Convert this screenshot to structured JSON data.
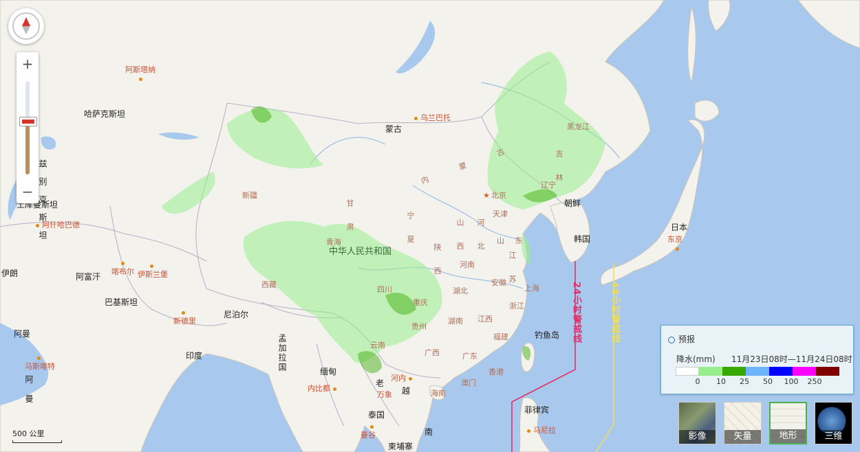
{
  "map": {
    "countries": [
      {
        "id": "mongolia",
        "text": "蒙古"
      },
      {
        "id": "kazakhstan",
        "text": "哈萨克斯坦"
      },
      {
        "id": "china",
        "text": "中华人民共和国"
      },
      {
        "id": "afghanistan",
        "text": "阿富汗"
      },
      {
        "id": "iran",
        "text": "伊朗"
      },
      {
        "id": "pakistan",
        "text": "巴基斯坦"
      },
      {
        "id": "nepal",
        "text": "尼泊尔"
      },
      {
        "id": "india",
        "text": "印度"
      },
      {
        "id": "myanmar",
        "text": "缅甸"
      },
      {
        "id": "laos",
        "text": "老"
      },
      {
        "id": "thailand",
        "text": "泰国"
      },
      {
        "id": "cambodia",
        "text": "柬埔寨"
      },
      {
        "id": "vietnam1",
        "text": "越"
      },
      {
        "id": "vietnam2",
        "text": "南"
      },
      {
        "id": "philippines",
        "text": "菲律宾"
      },
      {
        "id": "japan",
        "text": "日本"
      },
      {
        "id": "nkorea",
        "text": "朝鲜"
      },
      {
        "id": "skorea",
        "text": "韩国"
      },
      {
        "id": "turkmen",
        "text": "土库曼斯坦"
      },
      {
        "id": "oman",
        "text": "阿曼"
      },
      {
        "id": "diaoyu",
        "text": "钓鱼岛"
      }
    ],
    "vertical_labels": [
      {
        "id": "bangla",
        "text": "孟加拉国"
      },
      {
        "id": "uzbek",
        "text": "兹别克斯坦"
      },
      {
        "id": "arabia",
        "text": "阿 曼"
      }
    ],
    "provinces": [
      {
        "id": "xinjiang",
        "text": "新疆"
      },
      {
        "id": "xizang",
        "text": "西藏"
      },
      {
        "id": "qinghai",
        "text": "青海"
      },
      {
        "id": "gansu",
        "text": "甘 肃"
      },
      {
        "id": "neimeng",
        "text": "内 蒙 古"
      },
      {
        "id": "heilongjiang",
        "text": "黑龙江"
      },
      {
        "id": "jilin",
        "text": "吉 林"
      },
      {
        "id": "liaoning",
        "text": "辽宁"
      },
      {
        "id": "hebei",
        "text": "河 北"
      },
      {
        "id": "shanxi",
        "text": "山 西"
      },
      {
        "id": "shaanxi",
        "text": "陕 西"
      },
      {
        "id": "ningxia",
        "text": "宁 夏"
      },
      {
        "id": "shandong",
        "text": "山 东"
      },
      {
        "id": "henan",
        "text": "河南"
      },
      {
        "id": "jiangsu",
        "text": "江 苏"
      },
      {
        "id": "anhui",
        "text": "安徽"
      },
      {
        "id": "hubei",
        "text": "湖北"
      },
      {
        "id": "sichuan",
        "text": "四川"
      },
      {
        "id": "chongqing",
        "text": "重庆"
      },
      {
        "id": "zhejiang",
        "text": "浙江"
      },
      {
        "id": "hunan",
        "text": "湖南"
      },
      {
        "id": "jiangxi",
        "text": "江西"
      },
      {
        "id": "guizhou",
        "text": "贵州"
      },
      {
        "id": "fujian",
        "text": "福建"
      },
      {
        "id": "yunnan",
        "text": "云南"
      },
      {
        "id": "guangxi",
        "text": "广西"
      },
      {
        "id": "guangdong",
        "text": "广东"
      },
      {
        "id": "hainan",
        "text": "海南"
      },
      {
        "id": "beijing",
        "text": "北京"
      },
      {
        "id": "tianjin",
        "text": "天津"
      },
      {
        "id": "shanghai",
        "text": "上海"
      },
      {
        "id": "macau",
        "text": "澳门"
      },
      {
        "id": "hongkong",
        "text": "香港"
      }
    ],
    "cities": [
      {
        "id": "astana",
        "text": "阿斯塔纳"
      },
      {
        "id": "ulaanbaatar",
        "text": "乌兰巴托"
      },
      {
        "id": "ashgabat",
        "text": "阿什哈巴德"
      },
      {
        "id": "kabul",
        "text": "喀布尔"
      },
      {
        "id": "islamabad",
        "text": "伊斯兰堡"
      },
      {
        "id": "newdelhi",
        "text": "新德里"
      },
      {
        "id": "muscat",
        "text": "马斯喀特"
      },
      {
        "id": "naypyidaw",
        "text": "内比都"
      },
      {
        "id": "hanoi",
        "text": "河内"
      },
      {
        "id": "vientiane",
        "text": "万象"
      },
      {
        "id": "bangkok",
        "text": "曼谷"
      },
      {
        "id": "manila",
        "text": "马尼拉"
      },
      {
        "id": "tokyo",
        "text": "东京"
      }
    ],
    "warning_lines": {
      "h24": {
        "text": "24小时警戒线",
        "color": "#e0306a"
      },
      "h48": {
        "text": "48小时警戒线",
        "color": "#f0dc5a"
      }
    }
  },
  "nav": {
    "zoom_in": "+",
    "zoom_out": "−",
    "zoom_level_fraction": 0.57
  },
  "legend": {
    "title": "预报",
    "unit": "降水(mm)",
    "range": "11月23日08时—11月24日08时",
    "colors": [
      "#ffffff",
      "#98ee8c",
      "#37a800",
      "#6eb4fa",
      "#0000fe",
      "#fa00fa",
      "#800000"
    ],
    "ticks": [
      "0",
      "10",
      "25",
      "50",
      "100",
      "250"
    ]
  },
  "layers": [
    {
      "id": "satellite",
      "label": "影像",
      "active": false
    },
    {
      "id": "vector",
      "label": "矢量",
      "active": false
    },
    {
      "id": "terrain",
      "label": "地形",
      "active": true
    },
    {
      "id": "3d",
      "label": "三维",
      "active": false
    }
  ],
  "scale": {
    "label": "500 公里"
  }
}
